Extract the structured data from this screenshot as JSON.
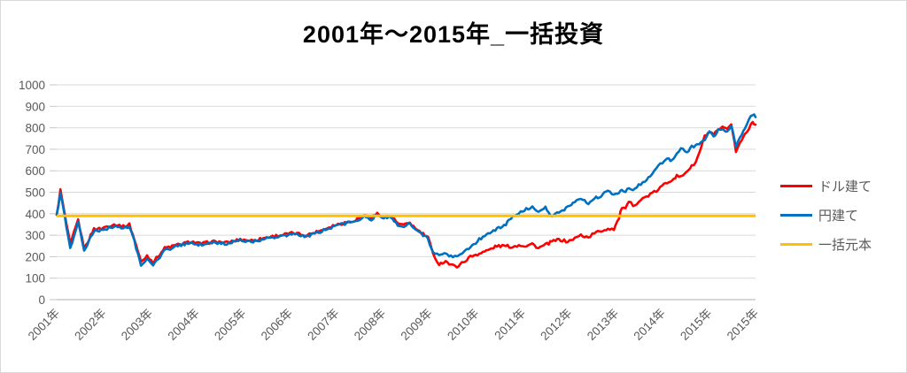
{
  "title": "2001年〜2015年_一括投資",
  "legend": [
    {
      "label": "ドル建て",
      "color": "#ff0000"
    },
    {
      "label": "円建て",
      "color": "#0070c0"
    },
    {
      "label": "一括元本",
      "color": "#ffc000"
    }
  ],
  "colors": {
    "gridline": "#d9d9d9",
    "axis_line": "#bfbfbf",
    "tick_mark": "#c6c6c6",
    "axis_text": "#595959",
    "title_text": "#000000"
  },
  "chart_data": {
    "type": "line",
    "title": "2001年〜2015年_一括投資",
    "xlabel": "",
    "ylabel": "",
    "ylim": [
      0,
      1000
    ],
    "y_ticks": [
      0,
      100,
      200,
      300,
      400,
      500,
      600,
      700,
      800,
      900,
      1000
    ],
    "x_tick_labels": [
      "2001年",
      "2002年",
      "2003年",
      "2004年",
      "2005年",
      "2006年",
      "2007年",
      "2008年",
      "2009年",
      "2010年",
      "2011年",
      "2012年",
      "2013年",
      "2014年",
      "2015年",
      "2015年"
    ],
    "x_range": [
      2001,
      2016
    ],
    "grid": "horizontal",
    "legend_position": "right",
    "series": [
      {
        "name": "ドル建て",
        "color": "#ff0000",
        "points": [
          [
            2001.0,
            390
          ],
          [
            2001.08,
            510
          ],
          [
            2001.17,
            400
          ],
          [
            2001.29,
            255
          ],
          [
            2001.46,
            372
          ],
          [
            2001.59,
            235
          ],
          [
            2001.8,
            330
          ],
          [
            2001.95,
            330
          ],
          [
            2002.12,
            345
          ],
          [
            2002.27,
            350
          ],
          [
            2002.43,
            340
          ],
          [
            2002.56,
            350
          ],
          [
            2002.67,
            280
          ],
          [
            2002.81,
            175
          ],
          [
            2002.94,
            205
          ],
          [
            2003.07,
            175
          ],
          [
            2003.32,
            240
          ],
          [
            2003.6,
            255
          ],
          [
            2003.89,
            270
          ],
          [
            2004.08,
            260
          ],
          [
            2004.37,
            270
          ],
          [
            2004.65,
            265
          ],
          [
            2004.94,
            280
          ],
          [
            2005.22,
            275
          ],
          [
            2005.51,
            290
          ],
          [
            2005.79,
            300
          ],
          [
            2006.08,
            310
          ],
          [
            2006.36,
            300
          ],
          [
            2006.65,
            320
          ],
          [
            2006.93,
            345
          ],
          [
            2007.22,
            360
          ],
          [
            2007.41,
            370
          ],
          [
            2007.6,
            395
          ],
          [
            2007.75,
            380
          ],
          [
            2007.88,
            400
          ],
          [
            2008.02,
            385
          ],
          [
            2008.17,
            390
          ],
          [
            2008.32,
            355
          ],
          [
            2008.45,
            345
          ],
          [
            2008.58,
            360
          ],
          [
            2008.7,
            330
          ],
          [
            2008.83,
            310
          ],
          [
            2008.97,
            290
          ],
          [
            2009.08,
            210
          ],
          [
            2009.21,
            165
          ],
          [
            2009.35,
            180
          ],
          [
            2009.46,
            160
          ],
          [
            2009.59,
            155
          ],
          [
            2009.73,
            175
          ],
          [
            2009.88,
            200
          ],
          [
            2010.07,
            215
          ],
          [
            2010.26,
            230
          ],
          [
            2010.45,
            250
          ],
          [
            2010.64,
            250
          ],
          [
            2010.79,
            245
          ],
          [
            2010.92,
            255
          ],
          [
            2011.08,
            250
          ],
          [
            2011.21,
            260
          ],
          [
            2011.34,
            240
          ],
          [
            2011.49,
            255
          ],
          [
            2011.63,
            270
          ],
          [
            2011.78,
            280
          ],
          [
            2011.97,
            270
          ],
          [
            2012.12,
            285
          ],
          [
            2012.25,
            300
          ],
          [
            2012.41,
            290
          ],
          [
            2012.54,
            310
          ],
          [
            2012.69,
            320
          ],
          [
            2012.83,
            330
          ],
          [
            2012.96,
            330
          ],
          [
            2013.07,
            380
          ],
          [
            2013.13,
            430
          ],
          [
            2013.21,
            420
          ],
          [
            2013.28,
            455
          ],
          [
            2013.37,
            440
          ],
          [
            2013.45,
            450
          ],
          [
            2013.58,
            470
          ],
          [
            2013.74,
            490
          ],
          [
            2013.87,
            505
          ],
          [
            2014.0,
            530
          ],
          [
            2014.1,
            545
          ],
          [
            2014.21,
            560
          ],
          [
            2014.31,
            575
          ],
          [
            2014.4,
            570
          ],
          [
            2014.53,
            600
          ],
          [
            2014.63,
            620
          ],
          [
            2014.72,
            640
          ],
          [
            2014.82,
            700
          ],
          [
            2014.91,
            760
          ],
          [
            2015.01,
            780
          ],
          [
            2015.1,
            765
          ],
          [
            2015.2,
            790
          ],
          [
            2015.29,
            800
          ],
          [
            2015.39,
            790
          ],
          [
            2015.48,
            820
          ],
          [
            2015.58,
            690
          ],
          [
            2015.67,
            730
          ],
          [
            2015.77,
            770
          ],
          [
            2015.86,
            800
          ],
          [
            2015.94,
            830
          ],
          [
            2016.0,
            815
          ]
        ]
      },
      {
        "name": "円建て",
        "color": "#0070c0",
        "points": [
          [
            2001.0,
            390
          ],
          [
            2001.08,
            500
          ],
          [
            2001.17,
            390
          ],
          [
            2001.29,
            240
          ],
          [
            2001.46,
            360
          ],
          [
            2001.59,
            225
          ],
          [
            2001.8,
            320
          ],
          [
            2001.95,
            320
          ],
          [
            2002.12,
            335
          ],
          [
            2002.27,
            340
          ],
          [
            2002.43,
            330
          ],
          [
            2002.56,
            340
          ],
          [
            2002.67,
            270
          ],
          [
            2002.81,
            155
          ],
          [
            2002.94,
            190
          ],
          [
            2003.07,
            160
          ],
          [
            2003.32,
            230
          ],
          [
            2003.6,
            250
          ],
          [
            2003.89,
            265
          ],
          [
            2004.08,
            255
          ],
          [
            2004.37,
            265
          ],
          [
            2004.65,
            260
          ],
          [
            2004.94,
            275
          ],
          [
            2005.22,
            270
          ],
          [
            2005.51,
            285
          ],
          [
            2005.79,
            295
          ],
          [
            2006.08,
            305
          ],
          [
            2006.36,
            295
          ],
          [
            2006.65,
            315
          ],
          [
            2006.93,
            340
          ],
          [
            2007.22,
            355
          ],
          [
            2007.41,
            365
          ],
          [
            2007.6,
            390
          ],
          [
            2007.75,
            375
          ],
          [
            2007.88,
            395
          ],
          [
            2008.02,
            380
          ],
          [
            2008.17,
            385
          ],
          [
            2008.32,
            350
          ],
          [
            2008.45,
            340
          ],
          [
            2008.58,
            355
          ],
          [
            2008.7,
            325
          ],
          [
            2008.83,
            305
          ],
          [
            2008.97,
            285
          ],
          [
            2009.08,
            215
          ],
          [
            2009.21,
            205
          ],
          [
            2009.35,
            215
          ],
          [
            2009.46,
            200
          ],
          [
            2009.59,
            205
          ],
          [
            2009.73,
            220
          ],
          [
            2009.88,
            245
          ],
          [
            2010.07,
            280
          ],
          [
            2010.26,
            310
          ],
          [
            2010.45,
            330
          ],
          [
            2010.64,
            350
          ],
          [
            2010.79,
            390
          ],
          [
            2010.92,
            405
          ],
          [
            2011.08,
            420
          ],
          [
            2011.21,
            435
          ],
          [
            2011.34,
            410
          ],
          [
            2011.49,
            430
          ],
          [
            2011.63,
            385
          ],
          [
            2011.78,
            405
          ],
          [
            2011.97,
            430
          ],
          [
            2012.12,
            450
          ],
          [
            2012.25,
            475
          ],
          [
            2012.41,
            450
          ],
          [
            2012.54,
            470
          ],
          [
            2012.69,
            485
          ],
          [
            2012.83,
            505
          ],
          [
            2012.96,
            485
          ],
          [
            2013.07,
            500
          ],
          [
            2013.13,
            515
          ],
          [
            2013.21,
            505
          ],
          [
            2013.28,
            520
          ],
          [
            2013.37,
            515
          ],
          [
            2013.45,
            525
          ],
          [
            2013.58,
            545
          ],
          [
            2013.74,
            570
          ],
          [
            2013.87,
            610
          ],
          [
            2014.0,
            640
          ],
          [
            2014.1,
            655
          ],
          [
            2014.21,
            645
          ],
          [
            2014.31,
            680
          ],
          [
            2014.4,
            700
          ],
          [
            2014.53,
            690
          ],
          [
            2014.63,
            710
          ],
          [
            2014.72,
            720
          ],
          [
            2014.82,
            730
          ],
          [
            2014.91,
            745
          ],
          [
            2015.01,
            780
          ],
          [
            2015.1,
            760
          ],
          [
            2015.2,
            790
          ],
          [
            2015.29,
            800
          ],
          [
            2015.39,
            780
          ],
          [
            2015.48,
            810
          ],
          [
            2015.58,
            715
          ],
          [
            2015.67,
            760
          ],
          [
            2015.77,
            800
          ],
          [
            2015.86,
            840
          ],
          [
            2015.94,
            865
          ],
          [
            2016.0,
            850
          ]
        ]
      },
      {
        "name": "一括元本",
        "color": "#ffc000",
        "constant": 390
      }
    ]
  }
}
